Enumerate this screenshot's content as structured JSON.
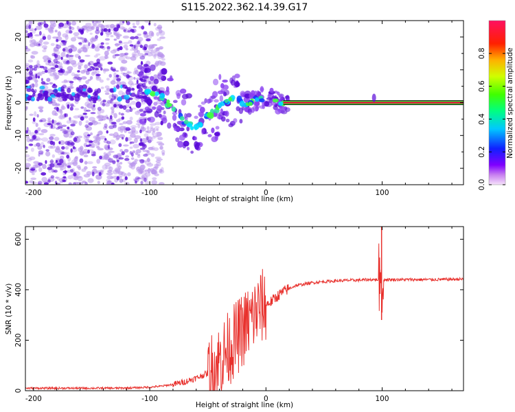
{
  "title": "S115.2022.362.14.39.G17",
  "colors": {
    "snr_line": "#e8302c",
    "signal_line_red": "#e01a3c",
    "signal_line_green": "#30e030",
    "noise_dark": "#5a0ad8",
    "noise_light": "#b894ec",
    "background": "#ffffff"
  },
  "chart_data": [
    {
      "type": "heatmap",
      "title": "S115.2022.362.14.39.G17",
      "xlabel": "Height of straight line (km)",
      "ylabel": "Frequency (Hz)",
      "xlim": [
        -207,
        170
      ],
      "ylim": [
        -25,
        25
      ],
      "x_ticks": [
        -200,
        -100,
        0,
        100
      ],
      "y_ticks": [
        -20,
        -10,
        0,
        10,
        20
      ],
      "colorbar": {
        "label": "Normalized spectral amplitude",
        "range": [
          0,
          1
        ],
        "ticks": [
          "0.0",
          "0.2",
          "0.4",
          "0.6",
          "0.8"
        ],
        "colormap": "hsv (violet at 0 to red at 1)"
      },
      "signal_trace": {
        "x": [
          -210,
          -200,
          -185,
          -170,
          -150,
          -130,
          -110,
          -100,
          -95,
          -90,
          -85,
          -80,
          -75,
          -70,
          -65,
          -60,
          -55,
          -50,
          -45,
          -40,
          -35,
          -30,
          -25,
          -20,
          -15,
          -10,
          -5,
          0,
          5,
          10,
          15,
          20,
          60,
          90,
          95,
          100,
          170
        ],
        "y": [
          3,
          3,
          3,
          3,
          3,
          3,
          3,
          3,
          3,
          2,
          0,
          -2,
          -4,
          -6,
          -7,
          -8,
          -6,
          -4,
          -3,
          -1,
          0,
          1,
          1,
          0,
          0,
          1,
          1,
          2,
          1,
          0,
          0,
          0,
          0,
          0,
          0,
          0,
          0
        ]
      },
      "noise_region": {
        "x_range": [
          -207,
          -100
        ],
        "y_range": [
          -25,
          25
        ]
      }
    },
    {
      "type": "line",
      "xlabel": "Height of straight line (km)",
      "ylabel": "SNR (10 * v/v)",
      "xlim": [
        -207,
        170
      ],
      "ylim": [
        0,
        650
      ],
      "x_ticks": [
        -200,
        -100,
        0,
        100
      ],
      "y_ticks": [
        0,
        200,
        400,
        600
      ],
      "series": [
        {
          "x": [
            -207,
            -190,
            -170,
            -150,
            -130,
            -110,
            -100,
            -90,
            -80,
            -70,
            -60,
            -50,
            -45,
            -40,
            -35,
            -30,
            -25,
            -20,
            -15,
            -10,
            -5,
            0,
            5,
            10,
            15,
            20,
            25,
            30,
            40,
            50,
            60,
            70,
            80,
            90,
            95,
            98,
            100,
            102,
            105,
            110,
            120,
            140,
            160,
            170
          ],
          "values": [
            10,
            10,
            10,
            10,
            10,
            12,
            14,
            18,
            25,
            35,
            50,
            70,
            90,
            120,
            150,
            180,
            210,
            240,
            270,
            300,
            330,
            340,
            355,
            375,
            392,
            405,
            415,
            420,
            428,
            432,
            435,
            437,
            438,
            440,
            440,
            440,
            440,
            440,
            440,
            440,
            440,
            440,
            441,
            442
          ]
        }
      ]
    }
  ]
}
